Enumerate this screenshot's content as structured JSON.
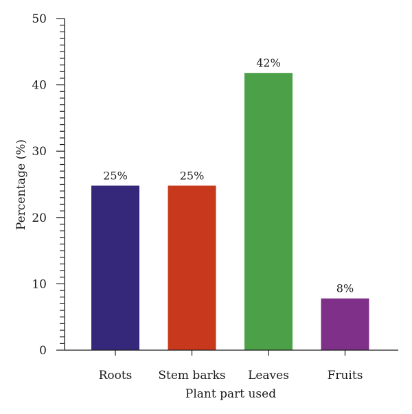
{
  "chart_data": {
    "type": "bar",
    "title": "",
    "xlabel": "Plant part used",
    "ylabel": "Percentage (%)",
    "categories": [
      "Roots",
      "Stem barks",
      "Leaves",
      "Fruits"
    ],
    "values": [
      24.8,
      24.8,
      41.8,
      7.8
    ],
    "data_labels": [
      "25%",
      "25%",
      "42%",
      "8%"
    ],
    "colors": [
      "#35287a",
      "#c8381c",
      "#4ba048",
      "#7f3088"
    ],
    "ylim": [
      0,
      50
    ],
    "yticks": [
      0,
      10,
      20,
      30,
      40,
      50
    ],
    "ytick_labels": [
      "0",
      "10",
      "20",
      "30",
      "40",
      "50"
    ],
    "minor_tick_step": 1,
    "grid": false,
    "legend": "none"
  }
}
